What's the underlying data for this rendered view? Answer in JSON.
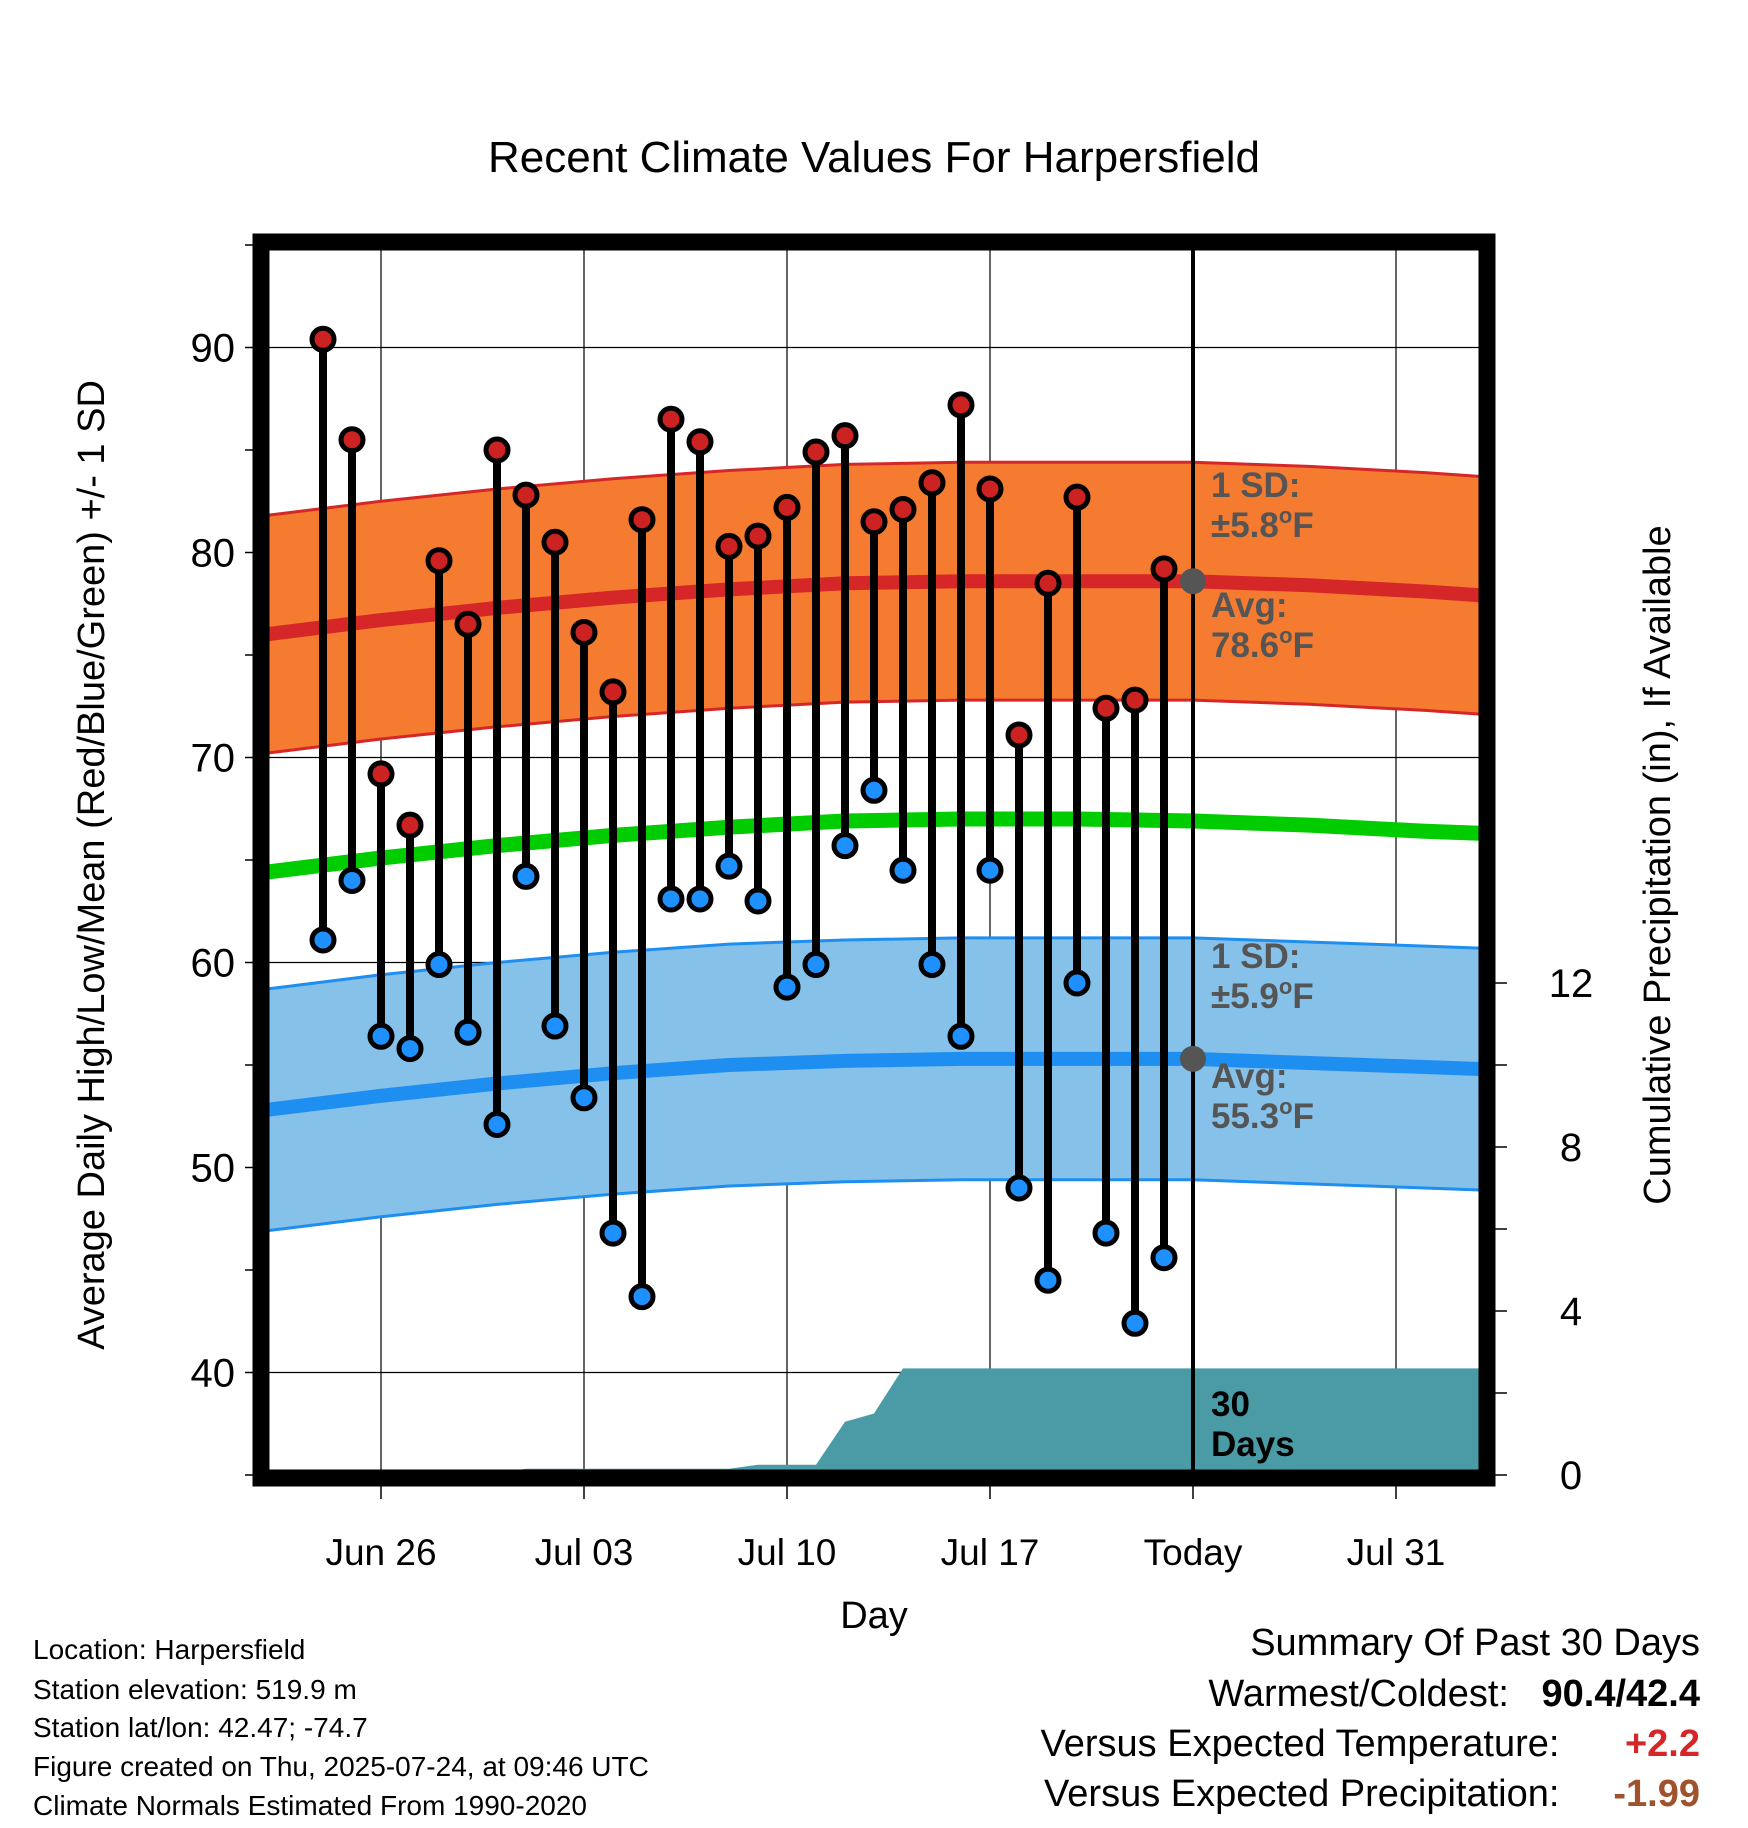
{
  "title": "Recent Climate Values For Harpersfield",
  "chart_data": {
    "type": "line",
    "title": "Recent Climate Values For Harpersfield",
    "xlabel": "Day",
    "ylabel": "Average Daily High/Low/Mean (Red/Blue/Green) +/- 1 SD",
    "y2label": "Cumulative Precipitation (in), If Available",
    "ylim": [
      35,
      95
    ],
    "y2lim": [
      0,
      30
    ],
    "xlim": [
      "2025-06-22",
      "2025-08-03"
    ],
    "yticks": [
      40,
      50,
      60,
      70,
      80,
      90
    ],
    "y2ticks": [
      0,
      4,
      8,
      12
    ],
    "xticks": [
      {
        "date": "2025-06-26",
        "label": "Jun 26"
      },
      {
        "date": "2025-07-03",
        "label": "Jul 03"
      },
      {
        "date": "2025-07-10",
        "label": "Jul 10"
      },
      {
        "date": "2025-07-17",
        "label": "Jul 17"
      },
      {
        "date": "2025-07-24",
        "label": "Today"
      },
      {
        "date": "2025-07-31",
        "label": "Jul 31"
      }
    ],
    "grid": true,
    "observed": [
      {
        "date": "2025-06-24",
        "high": 90.4,
        "low": 61.1
      },
      {
        "date": "2025-06-25",
        "high": 85.5,
        "low": 64.0
      },
      {
        "date": "2025-06-26",
        "high": 69.2,
        "low": 56.4
      },
      {
        "date": "2025-06-27",
        "high": 66.7,
        "low": 55.8
      },
      {
        "date": "2025-06-28",
        "high": 79.6,
        "low": 59.9
      },
      {
        "date": "2025-06-29",
        "high": 76.5,
        "low": 56.6
      },
      {
        "date": "2025-06-30",
        "high": 85.0,
        "low": 52.1
      },
      {
        "date": "2025-07-01",
        "high": 82.8,
        "low": 64.2
      },
      {
        "date": "2025-07-02",
        "high": 80.5,
        "low": 56.9
      },
      {
        "date": "2025-07-03",
        "high": 76.1,
        "low": 53.4
      },
      {
        "date": "2025-07-04",
        "high": 73.2,
        "low": 46.8
      },
      {
        "date": "2025-07-05",
        "high": 81.6,
        "low": 43.7
      },
      {
        "date": "2025-07-06",
        "high": 86.5,
        "low": 63.1
      },
      {
        "date": "2025-07-07",
        "high": 85.4,
        "low": 63.1
      },
      {
        "date": "2025-07-08",
        "high": 80.3,
        "low": 64.7
      },
      {
        "date": "2025-07-09",
        "high": 80.8,
        "low": 63.0
      },
      {
        "date": "2025-07-10",
        "high": 82.2,
        "low": 58.8
      },
      {
        "date": "2025-07-11",
        "high": 84.9,
        "low": 59.9
      },
      {
        "date": "2025-07-12",
        "high": 85.7,
        "low": 65.7
      },
      {
        "date": "2025-07-13",
        "high": 81.5,
        "low": 68.4
      },
      {
        "date": "2025-07-14",
        "high": 82.1,
        "low": 64.5
      },
      {
        "date": "2025-07-15",
        "high": 83.4,
        "low": 59.9
      },
      {
        "date": "2025-07-16",
        "high": 87.2,
        "low": 56.4
      },
      {
        "date": "2025-07-17",
        "high": 83.1,
        "low": 64.5
      },
      {
        "date": "2025-07-18",
        "high": 71.1,
        "low": 49.0
      },
      {
        "date": "2025-07-19",
        "high": 78.5,
        "low": 44.5
      },
      {
        "date": "2025-07-20",
        "high": 82.7,
        "low": 59.0
      },
      {
        "date": "2025-07-21",
        "high": 72.4,
        "low": 46.8
      },
      {
        "date": "2025-07-22",
        "high": 72.8,
        "low": 42.4
      },
      {
        "date": "2025-07-23",
        "high": 79.2,
        "low": 45.6
      }
    ],
    "normals": [
      {
        "date": "2025-06-22",
        "high": 76.0,
        "low": 52.8,
        "mean": 64.4
      },
      {
        "date": "2025-06-26",
        "high": 76.7,
        "low": 53.5,
        "mean": 65.1
      },
      {
        "date": "2025-06-30",
        "high": 77.3,
        "low": 54.1,
        "mean": 65.7
      },
      {
        "date": "2025-07-04",
        "high": 77.8,
        "low": 54.6,
        "mean": 66.2
      },
      {
        "date": "2025-07-08",
        "high": 78.2,
        "low": 55.0,
        "mean": 66.6
      },
      {
        "date": "2025-07-12",
        "high": 78.5,
        "low": 55.2,
        "mean": 66.9
      },
      {
        "date": "2025-07-16",
        "high": 78.6,
        "low": 55.3,
        "mean": 67.0
      },
      {
        "date": "2025-07-20",
        "high": 78.6,
        "low": 55.3,
        "mean": 67.0
      },
      {
        "date": "2025-07-24",
        "high": 78.6,
        "low": 55.3,
        "mean": 66.9
      },
      {
        "date": "2025-07-28",
        "high": 78.4,
        "low": 55.1,
        "mean": 66.7
      },
      {
        "date": "2025-08-01",
        "high": 78.1,
        "low": 54.9,
        "mean": 66.4
      },
      {
        "date": "2025-08-03",
        "high": 77.9,
        "low": 54.8,
        "mean": 66.3
      }
    ],
    "high_sd": 5.8,
    "low_sd": 5.9,
    "precip_cumulative": [
      {
        "date": "2025-06-22",
        "value": 0.0
      },
      {
        "date": "2025-06-26",
        "value": 0.0
      },
      {
        "date": "2025-06-27",
        "value": 0.05
      },
      {
        "date": "2025-06-30",
        "value": 0.05
      },
      {
        "date": "2025-07-01",
        "value": 0.15
      },
      {
        "date": "2025-07-08",
        "value": 0.15
      },
      {
        "date": "2025-07-09",
        "value": 0.25
      },
      {
        "date": "2025-07-11",
        "value": 0.25
      },
      {
        "date": "2025-07-12",
        "value": 1.3
      },
      {
        "date": "2025-07-13",
        "value": 1.5
      },
      {
        "date": "2025-07-14",
        "value": 2.6
      },
      {
        "date": "2025-08-03",
        "value": 2.6
      }
    ],
    "annotations": {
      "high_sd_label": [
        "1 SD:",
        "±5.8°F"
      ],
      "high_avg_label": [
        "Avg:",
        "78.6°F"
      ],
      "low_sd_label": [
        "1 SD:",
        "±5.9°F"
      ],
      "low_avg_label": [
        "Avg:",
        "55.3°F"
      ],
      "period_label": [
        "30",
        "Days"
      ],
      "today": "2025-07-24"
    },
    "colors": {
      "high_band": "#f47b2f",
      "high_line": "#d62728",
      "high_band_edge": "#d62728",
      "low_band": "#85c1e9",
      "low_line": "#1e8ff0",
      "low_band_edge": "#1e8ff0",
      "mean_line": "#00cc00",
      "precip": "#4a9ba6",
      "high_dot": "#cc2222",
      "low_dot": "#1e90ff",
      "annotation": "#555555"
    }
  },
  "info": {
    "location": "Location: Harpersfield",
    "elevation": "Station elevation: 519.9 m",
    "latlon": "Station lat/lon: 42.47; -74.7",
    "created": "Figure created on Thu, 2025-07-24, at 09:46 UTC",
    "normals": "Climate Normals Estimated From 1990-2020"
  },
  "summary": {
    "heading": "Summary Of Past 30 Days",
    "warmest_label": "Warmest/Coldest:",
    "warmest_value": "90.4/42.4",
    "temp_label": "Versus Expected Temperature:",
    "temp_value": "+2.2",
    "temp_color": "#d62728",
    "precip_label": "Versus Expected Precipitation:",
    "precip_value": "-1.99",
    "precip_color": "#a0522d"
  }
}
